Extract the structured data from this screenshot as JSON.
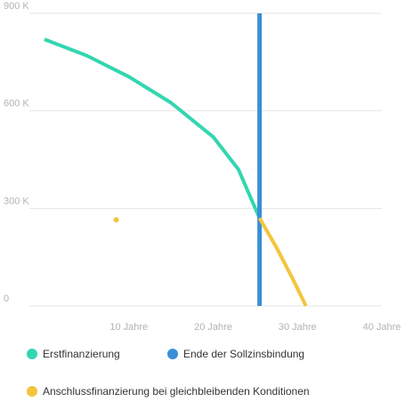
{
  "chart_data": {
    "type": "line",
    "title": "",
    "xlabel": "",
    "ylabel": "",
    "xlim": [
      0,
      40
    ],
    "ylim": [
      0,
      900000
    ],
    "grid": true,
    "legend_position": "bottom",
    "x_ticks": [
      {
        "value": 10,
        "label": "10 Jahre"
      },
      {
        "value": 20,
        "label": "20 Jahre"
      },
      {
        "value": 30,
        "label": "30 Jahre"
      },
      {
        "value": 40,
        "label": "40 Jahre"
      }
    ],
    "y_ticks": [
      {
        "value": 0,
        "label": "0"
      },
      {
        "value": 300000,
        "label": "300 K"
      },
      {
        "value": 600000,
        "label": "600 K"
      },
      {
        "value": 900000,
        "label": "900 K"
      }
    ],
    "series": [
      {
        "name": "Erstfinanzierung",
        "color": "#33d6b0",
        "points": [
          [
            0,
            820000
          ],
          [
            5,
            770000
          ],
          [
            10,
            705000
          ],
          [
            15,
            625000
          ],
          [
            20,
            520000
          ],
          [
            23,
            420000
          ],
          [
            25.5,
            270000
          ]
        ]
      },
      {
        "name": "Ende der Sollzinsbindung",
        "color": "#3a8fd6",
        "vertical_x": 25.5
      },
      {
        "name": "Anschlussfinanzierung bei gleichbleibenden Konditionen",
        "color": "#f2c53d",
        "points": [
          [
            25.5,
            270000
          ],
          [
            27.5,
            180000
          ],
          [
            29.5,
            80000
          ],
          [
            31,
            0
          ]
        ],
        "extra_points": [
          [
            8.5,
            265000
          ]
        ]
      }
    ]
  }
}
